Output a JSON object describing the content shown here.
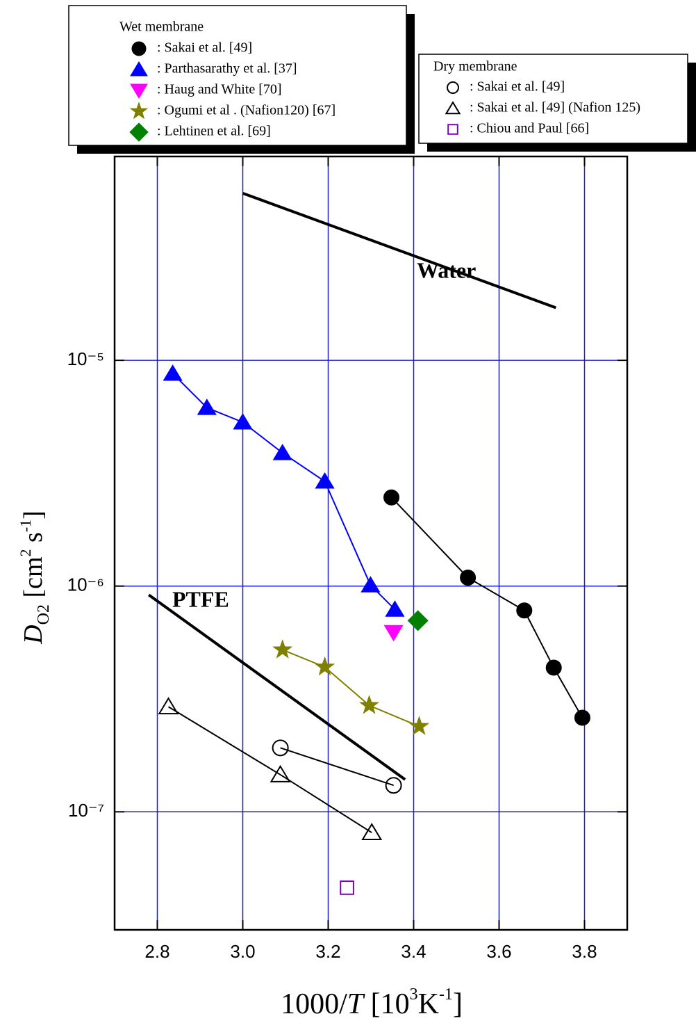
{
  "chart_data": {
    "type": "scatter",
    "xlabel": [
      "1000/",
      "T",
      " [10",
      "3",
      "K",
      "-1",
      "]"
    ],
    "ylabel": [
      "D",
      "O2",
      " [cm",
      "2",
      " s",
      "-1",
      "]"
    ],
    "xlim": [
      2.7,
      3.9
    ],
    "xticks": [
      {
        "value": 2.8,
        "label": "2.8"
      },
      {
        "value": 3.0,
        "label": "3.0"
      },
      {
        "value": 3.2,
        "label": "3.2"
      },
      {
        "value": 3.4,
        "label": "3.4"
      },
      {
        "value": 3.6,
        "label": "3.6"
      },
      {
        "value": 3.8,
        "label": "3.8"
      }
    ],
    "ylim": [
      3e-08,
      8e-05
    ],
    "log_y": true,
    "yticks": [
      {
        "value": 1e-05,
        "label": "10⁻⁵"
      },
      {
        "value": 1e-06,
        "label": "10⁻⁶"
      },
      {
        "value": 1e-07,
        "label": "10⁻⁷"
      }
    ],
    "grid": true,
    "grid_color": "#1f1fc8",
    "legends": [
      {
        "title": "Wet membrane",
        "series": [
          {
            "name": ": Sakai et al. [49]",
            "color": "#000000",
            "marker": "circle",
            "filled": true,
            "line": true,
            "x": [
              3.348,
              3.527,
              3.659,
              3.728,
              3.795
            ],
            "values": [
              2.47e-06,
              1.09e-06,
              7.8e-07,
              4.35e-07,
              2.61e-07
            ]
          },
          {
            "name": ": Parthasarathy  et al. [37]",
            "color": "#0000ff",
            "marker": "triangle-up",
            "filled": true,
            "line": true,
            "x": [
              2.836,
              2.916,
              3.0,
              3.093,
              3.192,
              3.299,
              3.356
            ],
            "values": [
              8.74e-06,
              6.17e-06,
              5.32e-06,
              3.89e-06,
              2.91e-06,
              1.01e-06,
              7.88e-07
            ]
          },
          {
            "name": ": Haug and White [70]",
            "color": "#ff00ff",
            "marker": "triangle-down",
            "filled": true,
            "line": false,
            "x": [
              3.353
            ],
            "values": [
              6.24e-07
            ]
          },
          {
            "name": ": Ogumi et al . (Nafion120) [67]",
            "color": "#808000",
            "marker": "star",
            "filled": true,
            "line": true,
            "x": [
              3.093,
              3.192,
              3.296,
              3.413
            ],
            "values": [
              5.22e-07,
              4.38e-07,
              2.96e-07,
              2.39e-07
            ]
          },
          {
            "name": ": Lehtinen et al. [69]",
            "color": "#008000",
            "marker": "diamond",
            "filled": true,
            "line": false,
            "x": [
              3.41
            ],
            "values": [
              7.03e-07
            ]
          }
        ]
      },
      {
        "title": "Dry membrane",
        "series": [
          {
            "name": ": Sakai et al. [49]",
            "color": "#000000",
            "marker": "circle",
            "filled": false,
            "line": true,
            "x": [
              3.088,
              3.353
            ],
            "values": [
              1.92e-07,
              1.31e-07
            ]
          },
          {
            "name": ": Sakai et al. [49]  (Nafion 125)",
            "color": "#000000",
            "marker": "triangle-up",
            "filled": false,
            "line": true,
            "x": [
              2.826,
              3.088,
              3.302
            ],
            "values": [
              2.92e-07,
              1.46e-07,
              8.09e-08
            ]
          },
          {
            "name": ": Chiou and Paul [66]",
            "color": "#8000c0",
            "marker": "square",
            "filled": false,
            "line": false,
            "x": [
              3.244
            ],
            "values": [
              4.61e-08
            ]
          }
        ]
      }
    ],
    "reference_lines": [
      {
        "label": "Water",
        "color": "#000000",
        "x": [
          3.0,
          3.733
        ],
        "values": [
          5.5e-05,
          1.71e-05
        ]
      },
      {
        "label": "PTFE",
        "color": "#000000",
        "x": [
          2.78,
          3.38
        ],
        "values": [
          9.14e-07,
          1.39e-07
        ]
      }
    ]
  }
}
